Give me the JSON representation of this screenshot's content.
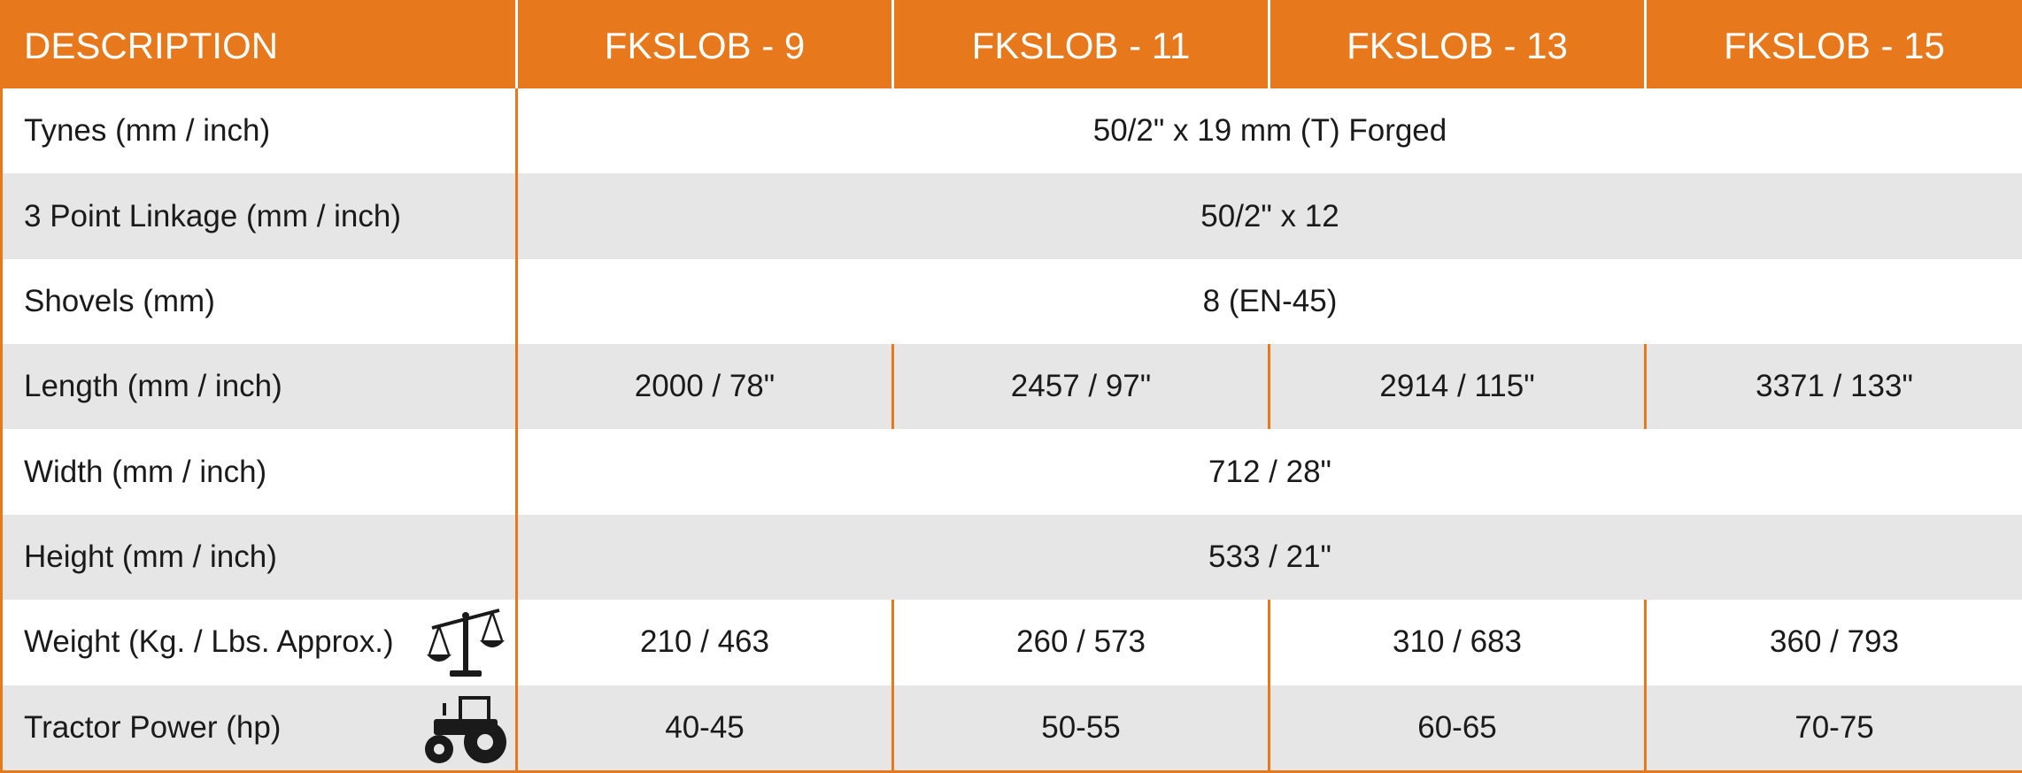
{
  "header": {
    "description": "DESCRIPTION",
    "models": [
      "FKSLOB - 9",
      "FKSLOB - 11",
      "FKSLOB - 13",
      "FKSLOB - 15"
    ]
  },
  "rows": {
    "tynes": {
      "label": "Tynes (mm / inch)",
      "value": "50/2\" x 19 mm (T) Forged"
    },
    "linkage": {
      "label": "3 Point Linkage (mm / inch)",
      "value": "50/2\" x 12"
    },
    "shovels": {
      "label": "Shovels (mm)",
      "value": "8 (EN-45)"
    },
    "length": {
      "label": "Length (mm / inch)",
      "values": [
        "2000 / 78\"",
        "2457 / 97\"",
        "2914 / 115\"",
        "3371 / 133\""
      ]
    },
    "width": {
      "label": "Width (mm / inch)",
      "value": "712 / 28\""
    },
    "height": {
      "label": "Height (mm / inch)",
      "value": "533 / 21\""
    },
    "weight": {
      "label": "Weight (Kg. / Lbs. Approx.)",
      "icon": "scale-icon",
      "values": [
        "210 / 463",
        "260 / 573",
        "310 / 683",
        "360 / 793"
      ]
    },
    "power": {
      "label": "Tractor Power (hp)",
      "icon": "tractor-icon",
      "values": [
        "40-45",
        "50-55",
        "60-65",
        "70-75"
      ]
    }
  },
  "colors": {
    "accent": "#e8781c",
    "stripe": "#e6e6e6",
    "text": "#1a1a1a"
  }
}
